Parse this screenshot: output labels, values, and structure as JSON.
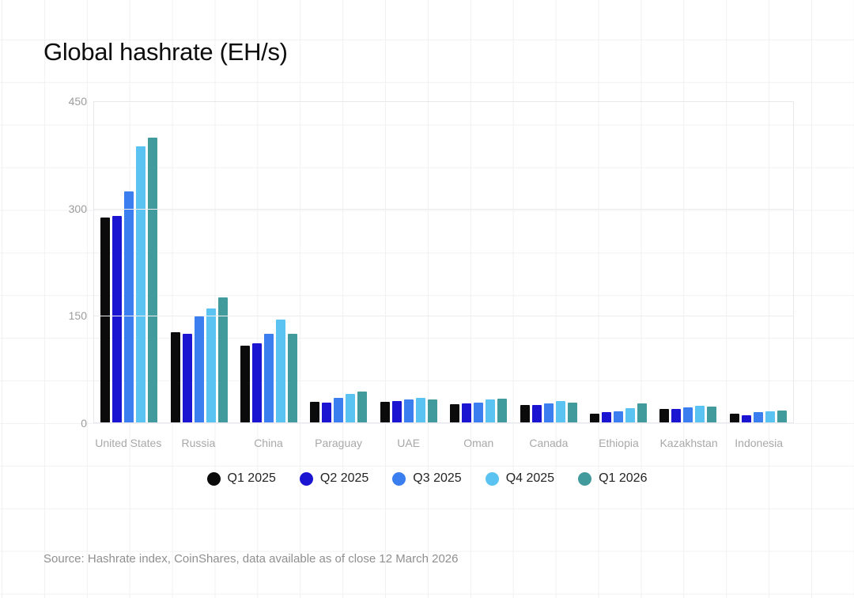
{
  "chart_data": {
    "type": "bar",
    "title": "Global hashrate (EH/s)",
    "xlabel": "",
    "ylabel": "EH/s",
    "ylim": [
      0,
      450
    ],
    "yticks": [
      0,
      150,
      300,
      450
    ],
    "grid": "horizontal",
    "legend_position": "bottom",
    "categories": [
      "United States",
      "Russia",
      "China",
      "Paraguay",
      "UAE",
      "Oman",
      "Canada",
      "Ethiopia",
      "Kazakhstan",
      "Indonesia"
    ],
    "series": [
      {
        "name": "Q1 2025",
        "color": "#0b0b0b",
        "values": [
          288,
          127,
          108,
          29,
          29,
          26,
          24,
          12,
          19,
          12
        ]
      },
      {
        "name": "Q2 2025",
        "color": "#1b15d2",
        "values": [
          290,
          125,
          111,
          28,
          30,
          27,
          25,
          14,
          19,
          10
        ]
      },
      {
        "name": "Q3 2025",
        "color": "#3b7ef0",
        "values": [
          324,
          149,
          124,
          35,
          32,
          28,
          27,
          16,
          21,
          14
        ]
      },
      {
        "name": "Q4 2025",
        "color": "#5ac3f1",
        "values": [
          388,
          160,
          145,
          40,
          34,
          32,
          30,
          20,
          23,
          16
        ]
      },
      {
        "name": "Q1 2026",
        "color": "#419a9b",
        "values": [
          400,
          176,
          124,
          43,
          32,
          33,
          28,
          27,
          22,
          17
        ]
      }
    ]
  },
  "footer": {
    "source": "Source: Hashrate index, CoinShares, data available as of close 12 March 2026"
  }
}
